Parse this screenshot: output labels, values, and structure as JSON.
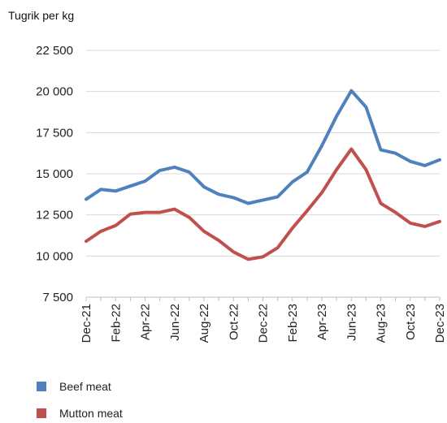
{
  "chart_data": {
    "type": "line",
    "ylabel": "Tugrik per kg",
    "ylim": [
      7500,
      22500
    ],
    "yticks": [
      7500,
      10000,
      12500,
      15000,
      17500,
      20000,
      22500
    ],
    "ytick_labels": [
      "7 500",
      "10 000",
      "12 500",
      "15 000",
      "17 500",
      "20 000",
      "22 500"
    ],
    "x": [
      "Dec-21",
      "Jan-22",
      "Feb-22",
      "Mar-22",
      "Apr-22",
      "May-22",
      "Jun-22",
      "Jul-22",
      "Aug-22",
      "Sep-22",
      "Oct-22",
      "Nov-22",
      "Dec-22",
      "Jan-23",
      "Feb-23",
      "Mar-23",
      "Apr-23",
      "May-23",
      "Jun-23",
      "Jul-23",
      "Aug-23",
      "Sep-23",
      "Oct-23",
      "Nov-23",
      "Dec-23"
    ],
    "xtick_labels": [
      "Dec-21",
      "Feb-22",
      "Apr-22",
      "Jun-22",
      "Aug-22",
      "Oct-22",
      "Dec-22",
      "Feb-23",
      "Apr-23",
      "Jun-23",
      "Aug-23",
      "Oct-23",
      "Dec-23"
    ],
    "grid": "horizontal",
    "legend": "bottom-left",
    "series": [
      {
        "name": "Beef meat",
        "color": "#4f81bd",
        "values": [
          13450,
          14050,
          13950,
          14250,
          14550,
          15200,
          15400,
          15100,
          14200,
          13750,
          13550,
          13200,
          13400,
          13600,
          14500,
          15100,
          16700,
          18500,
          20050,
          19050,
          16450,
          16250,
          15750,
          15500,
          15850
        ]
      },
      {
        "name": "Mutton meat",
        "color": "#c0504d",
        "values": [
          10900,
          11500,
          11850,
          12550,
          12650,
          12650,
          12850,
          12350,
          11500,
          10950,
          10250,
          9800,
          9950,
          10500,
          11700,
          12750,
          13850,
          15250,
          16500,
          15250,
          13200,
          12650,
          12000,
          11800,
          12100
        ]
      }
    ]
  }
}
